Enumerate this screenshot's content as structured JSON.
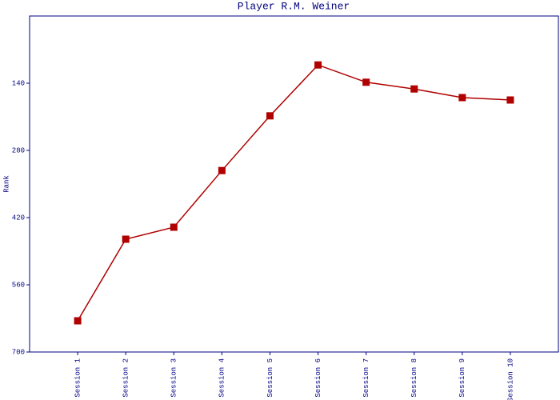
{
  "chart_data": {
    "type": "line",
    "title": "Player R.M. Weiner",
    "y_label": "Rank",
    "categories": [
      "Session 1",
      "Session 2",
      "Session 3",
      "Session 4",
      "Session 5",
      "Session 6",
      "Session 7",
      "Session 8",
      "Session 9",
      "Session 10"
    ],
    "series": [
      {
        "name": "Rank",
        "color": "#b00000",
        "values": [
          635,
          465,
          440,
          322,
          208,
          102,
          138,
          152,
          170,
          175
        ]
      }
    ],
    "ylim": [
      0,
      700
    ],
    "yticks": [
      140,
      280,
      420,
      560,
      700
    ],
    "invert_y": true,
    "grid": false
  }
}
